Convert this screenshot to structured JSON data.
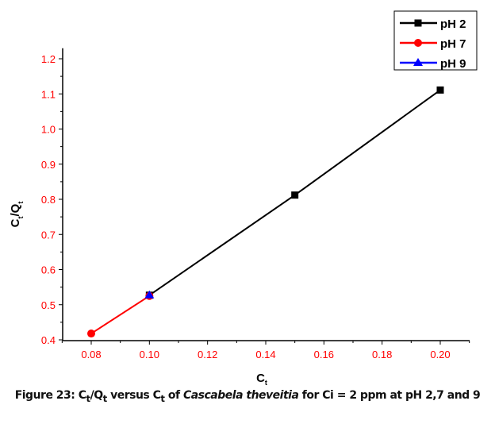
{
  "chart_data": {
    "type": "line",
    "title": "",
    "xlabel": "C",
    "xlabel_sub": "t",
    "ylabel": "C",
    "ylabel_sub1": "t",
    "ylabel_mid": "/Q",
    "ylabel_sub2": "t",
    "xlim": [
      0.07,
      0.21
    ],
    "ylim": [
      0.4,
      1.23
    ],
    "xticks": [
      "0.08",
      "0.10",
      "0.12",
      "0.14",
      "0.16",
      "0.18",
      "0.20"
    ],
    "yticks": [
      "0.4",
      "0.5",
      "0.6",
      "0.7",
      "0.8",
      "0.9",
      "1.0",
      "1.1",
      "1.2"
    ],
    "legend_position": "top-right",
    "series": [
      {
        "name": "pH 2",
        "color": "#000000",
        "marker": "square",
        "x": [
          0.1,
          0.15,
          0.2
        ],
        "y": [
          0.527,
          0.812,
          1.111
        ]
      },
      {
        "name": "pH 7",
        "color": "#ff0000",
        "marker": "circle",
        "x": [
          0.08,
          0.1
        ],
        "y": [
          0.418,
          0.525
        ]
      },
      {
        "name": "pH 9",
        "color": "#0000ff",
        "marker": "triangle",
        "x": [
          0.1
        ],
        "y": [
          0.527
        ]
      }
    ]
  },
  "caption": {
    "prefix": "Figure 23: C",
    "sub1": "t",
    "mid1": "/Q",
    "sub2": "t",
    "mid2": " versus C",
    "sub3": "t",
    "mid3": " of ",
    "species": "Cascabela theveitia",
    "suffix": " for Ci = 2 ppm at pH 2,7 and 9"
  }
}
